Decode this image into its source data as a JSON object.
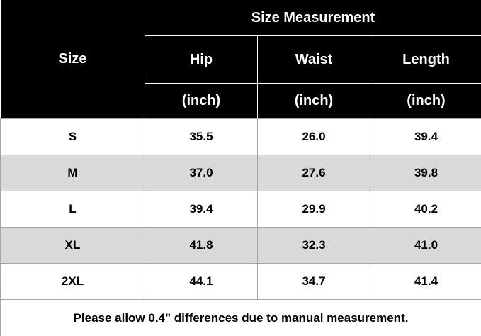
{
  "header": {
    "title": "Size Measurement",
    "size_label": "Size",
    "columns": [
      {
        "name": "Hip",
        "unit": "(inch)"
      },
      {
        "name": "Waist",
        "unit": "(inch)"
      },
      {
        "name": "Length",
        "unit": "(inch)"
      }
    ]
  },
  "table": {
    "rows": [
      [
        "S",
        "35.5",
        "26.0",
        "39.4"
      ],
      [
        "M",
        "37.0",
        "27.6",
        "39.8"
      ],
      [
        "L",
        "39.4",
        "29.9",
        "40.2"
      ],
      [
        "XL",
        "41.8",
        "32.3",
        "41.0"
      ],
      [
        "2XL",
        "44.1",
        "34.7",
        "41.4"
      ]
    ]
  },
  "footer": {
    "note": "Please allow 0.4\" differences due to manual measurement."
  }
}
